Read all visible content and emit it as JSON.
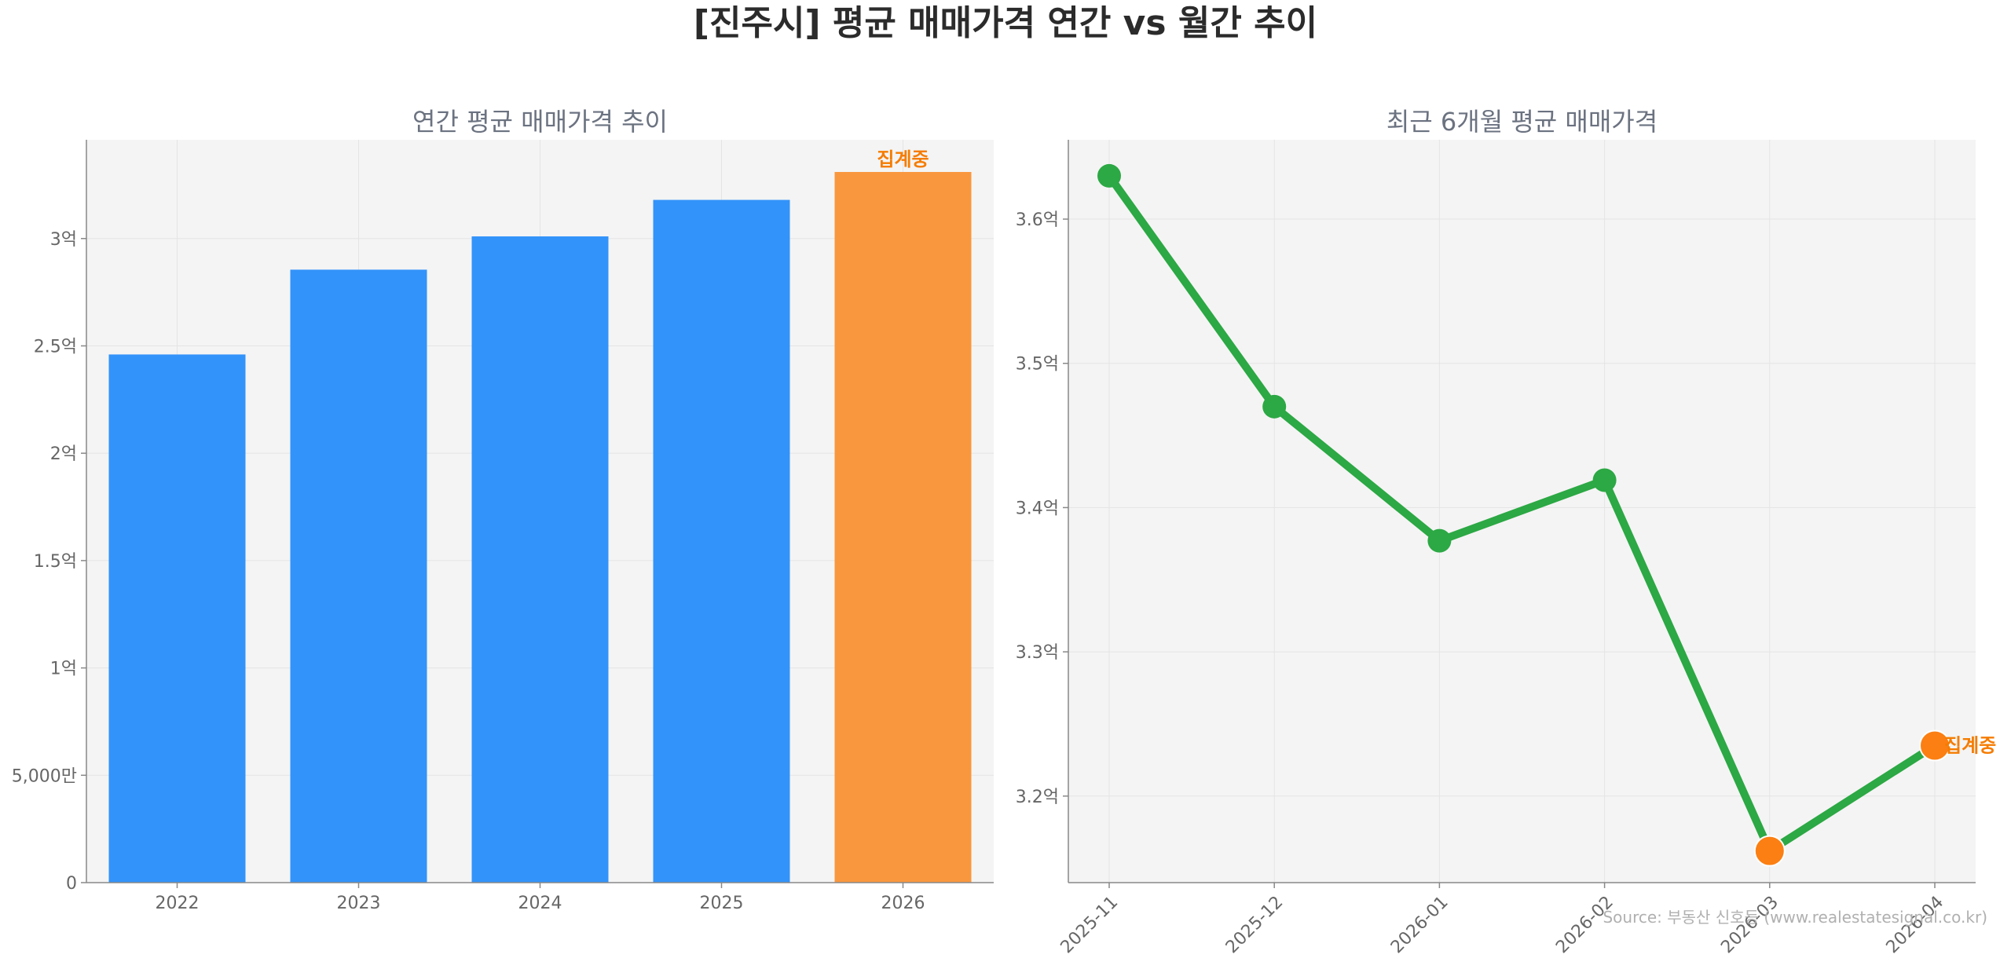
{
  "title": "[진주시] 평균 매매가격 연간 vs 월간 추이",
  "source": "Source: 부동산 신호등 (www.realestatesignal.co.kr)",
  "colors": {
    "bar": "#3293fa",
    "bar_highlight": "#f9973e",
    "line": "#2ca844",
    "marker_highlight": "#fb7f12",
    "annotation": "#f57c00",
    "plot_bg": "#f4f4f4",
    "grid": "#e4e4e4",
    "axis": "#888888"
  },
  "chart_data": [
    {
      "type": "bar",
      "title": "연간 평균 매매가격 추이",
      "categories": [
        "2022",
        "2023",
        "2024",
        "2025",
        "2026"
      ],
      "values": [
        24600,
        28550,
        30100,
        31800,
        33100
      ],
      "highlight_index": 4,
      "annotation": "집계중",
      "ylim": [
        0,
        34600
      ],
      "yticks": [
        0,
        5000,
        10000,
        15000,
        20000,
        25000,
        30000
      ],
      "ytick_labels": [
        "0",
        "5,000만",
        "1억",
        "1.5억",
        "2억",
        "2.5억",
        "3억"
      ],
      "grid": true
    },
    {
      "type": "line",
      "title": "최근 6개월 평균 매매가격",
      "x": [
        "2025-11",
        "2025-12",
        "2026-01",
        "2026-02",
        "2026-03",
        "2026-04"
      ],
      "values": [
        36300,
        34700,
        33770,
        34190,
        31620,
        32350
      ],
      "highlight_indices": [
        4,
        5
      ],
      "annotation": "집계중",
      "ylim": [
        31400,
        36550
      ],
      "yticks": [
        32000,
        33000,
        34000,
        35000,
        36000
      ],
      "ytick_labels": [
        "3.2억",
        "3.3억",
        "3.4억",
        "3.5억",
        "3.6억"
      ],
      "grid": true
    }
  ]
}
